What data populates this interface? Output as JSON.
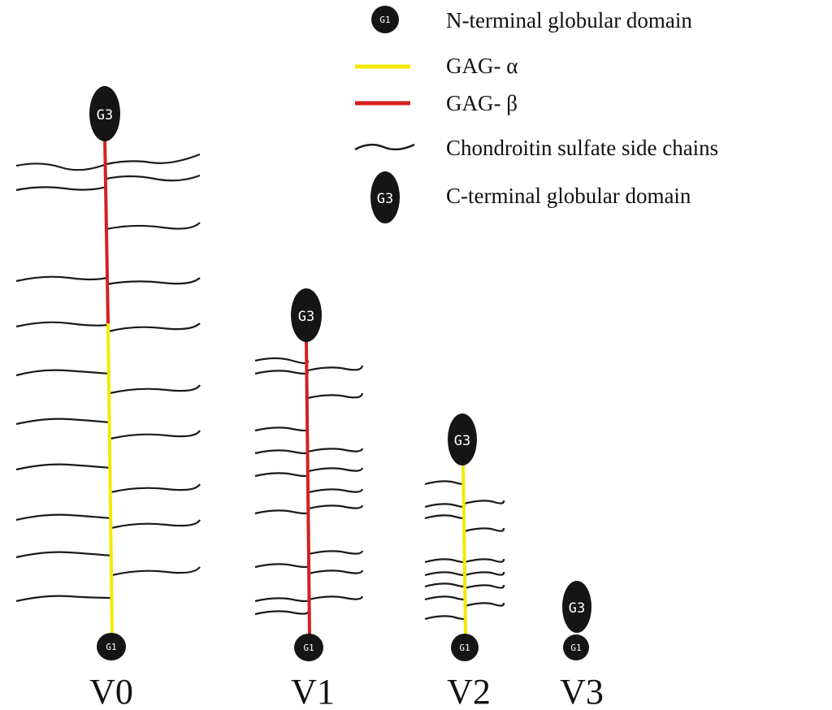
{
  "legend": {
    "items": [
      {
        "key": "g1",
        "icon_label": "G1",
        "label": "N-terminal globular domain"
      },
      {
        "key": "gag_alpha",
        "color": "#f2ea00",
        "label": "GAG- α"
      },
      {
        "key": "gag_beta",
        "color": "#d42020",
        "label": "GAG- β"
      },
      {
        "key": "cs_chains",
        "color": "#1a1a1a",
        "label": "Chondroitin sulfate side chains"
      },
      {
        "key": "g3",
        "icon_label": "G3",
        "label": "C-terminal globular domain"
      }
    ]
  },
  "variants": [
    {
      "name": "V0",
      "g3": "G3",
      "g1": "G1",
      "segments": [
        "GAG-β",
        "GAG-α"
      ]
    },
    {
      "name": "V1",
      "g3": "G3",
      "g1": "G1",
      "segments": [
        "GAG-β"
      ]
    },
    {
      "name": "V2",
      "g3": "G3",
      "g1": "G1",
      "segments": [
        "GAG-α"
      ]
    },
    {
      "name": "V3",
      "g3": "G3",
      "g1": "G1",
      "segments": []
    }
  ],
  "colors": {
    "gag_alpha": "#f2ea00",
    "gag_beta": "#d42020",
    "domain_fill": "#151515",
    "chain": "#1a1a1a"
  }
}
